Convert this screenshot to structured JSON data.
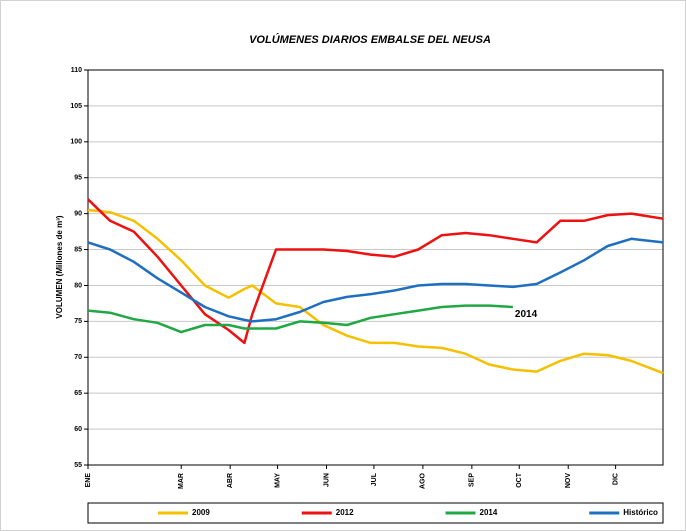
{
  "chart_data": {
    "type": "line",
    "title": "VOLÚMENES DIARIOS EMBALSE DEL NEUSA",
    "y_label": "VOLUMEN (Millones de m³)",
    "x": [
      1,
      15,
      30,
      45,
      60,
      75,
      90,
      100,
      105,
      120,
      135,
      150,
      165,
      180,
      195,
      210,
      225,
      240,
      255,
      270,
      285,
      300,
      315,
      330,
      345,
      365
    ],
    "xlim": [
      1,
      365
    ],
    "xticks": [
      {
        "value": 1,
        "label": "ENE"
      },
      {
        "value": 60,
        "label": "MAR"
      },
      {
        "value": 91,
        "label": "ABR"
      },
      {
        "value": 121,
        "label": "MAY"
      },
      {
        "value": 152,
        "label": "JUN"
      },
      {
        "value": 182,
        "label": "JUL"
      },
      {
        "value": 213,
        "label": "AGO"
      },
      {
        "value": 244,
        "label": "SEP"
      },
      {
        "value": 274,
        "label": "OCT"
      },
      {
        "value": 305,
        "label": "NOV"
      },
      {
        "value": 335,
        "label": "DIC"
      }
    ],
    "ylim": [
      55,
      110
    ],
    "yticks": [
      55,
      60,
      65,
      70,
      75,
      80,
      85,
      90,
      95,
      100,
      105,
      110
    ],
    "grid": true,
    "legend": "bottom",
    "series": [
      {
        "name": "2009",
        "color": "#f5c000",
        "values": [
          90.5,
          90.2,
          89,
          86.5,
          83.5,
          80,
          78.3,
          79.5,
          80,
          77.5,
          77,
          74.5,
          73,
          72,
          72,
          71.5,
          71.3,
          70.5,
          69,
          68.3,
          68,
          69.5,
          70.5,
          70.3,
          69.5,
          67.8
        ]
      },
      {
        "name": "2012",
        "color": "#ee1111",
        "values": [
          92,
          89,
          87.5,
          84,
          80,
          76,
          73.8,
          72,
          76,
          85,
          85,
          85,
          84.8,
          84.3,
          84,
          85,
          87,
          87.3,
          87,
          86.5,
          86,
          89,
          89,
          89.8,
          90,
          89.3
        ]
      },
      {
        "name": "2014",
        "color": "#1fa843",
        "values": [
          76.5,
          76.2,
          75.3,
          74.8,
          73.5,
          74.5,
          74.5,
          74,
          74,
          74,
          75,
          74.8,
          74.5,
          75.5,
          76,
          76.5,
          77,
          77.2,
          77.2,
          77,
          null,
          null,
          null,
          null,
          null,
          null
        ]
      },
      {
        "name": "Histórico",
        "color": "#1f6fc1",
        "values": [
          86,
          85,
          83.3,
          81,
          79,
          77,
          75.7,
          75.2,
          75,
          75.3,
          76.3,
          77.7,
          78.4,
          78.8,
          79.3,
          80,
          80.2,
          80.2,
          80,
          79.8,
          80.2,
          81.8,
          83.5,
          85.5,
          86.5,
          86
        ]
      }
    ],
    "annotations": [
      {
        "text": "2014",
        "x": 270,
        "y": 76
      }
    ]
  }
}
